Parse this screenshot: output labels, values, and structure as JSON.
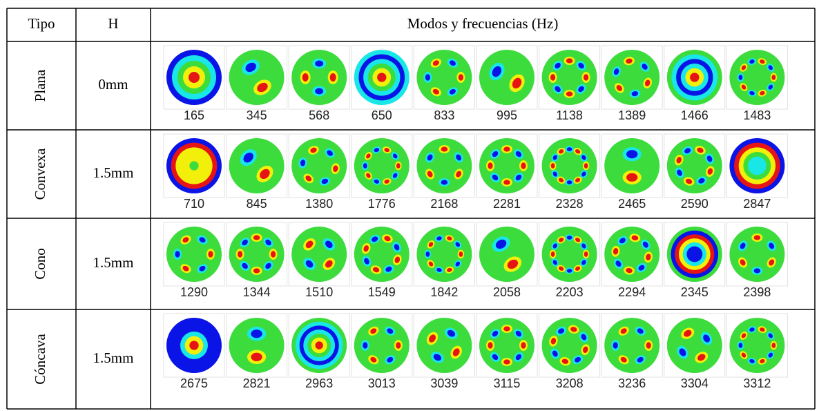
{
  "header": {
    "tipo": "Tipo",
    "h": "H",
    "modes": "Modos y frecuencias (Hz)"
  },
  "rows": [
    {
      "tipo": "Plana",
      "h": "0mm",
      "frequencies": [
        165,
        345,
        568,
        650,
        833,
        995,
        1138,
        1389,
        1466,
        1483
      ]
    },
    {
      "tipo": "Convexa",
      "h": "1.5mm",
      "frequencies": [
        710,
        845,
        1380,
        1776,
        2168,
        2281,
        2328,
        2465,
        2590,
        2847
      ]
    },
    {
      "tipo": "Cono",
      "h": "1.5mm",
      "frequencies": [
        1290,
        1344,
        1510,
        1549,
        1842,
        2058,
        2203,
        2294,
        2345,
        2398
      ]
    },
    {
      "tipo": "Cóncava",
      "h": "1.5mm",
      "frequencies": [
        2675,
        2821,
        2963,
        3013,
        3039,
        3115,
        3208,
        3236,
        3304,
        3312
      ]
    }
  ]
}
